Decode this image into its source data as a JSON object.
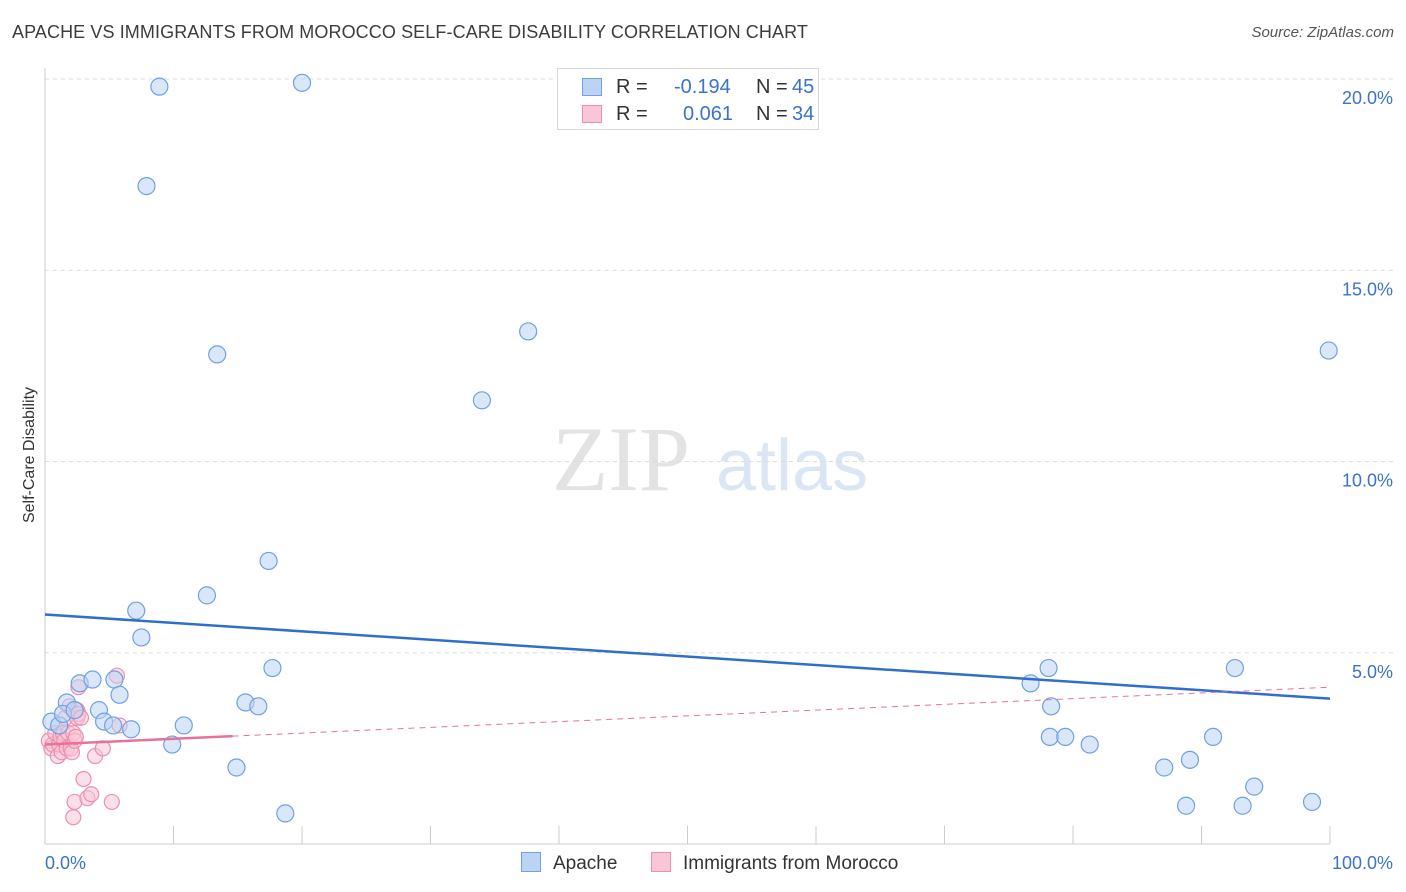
{
  "title": "APACHE VS IMMIGRANTS FROM MOROCCO SELF-CARE DISABILITY CORRELATION CHART",
  "source": "Source: ZipAtlas.com",
  "watermark": {
    "zip": "ZIP",
    "atlas": "atlas"
  },
  "legend": {
    "rows": [
      {
        "r_label": "R =",
        "r_value": "-0.194",
        "n_label": "N =",
        "n_value": "45"
      },
      {
        "r_label": "R =",
        "r_value": "0.061",
        "n_label": "N =",
        "n_value": "34"
      }
    ]
  },
  "chart_data": {
    "type": "scatter",
    "title": "APACHE VS IMMIGRANTS FROM MOROCCO SELF-CARE DISABILITY CORRELATION CHART",
    "xlabel": "",
    "ylabel": "Self-Care Disability",
    "xlim": [
      0,
      100
    ],
    "ylim": [
      0,
      20
    ],
    "x_tick_labels": [
      "0.0%",
      "100.0%"
    ],
    "y_ticks": [
      5,
      10,
      15,
      20
    ],
    "y_tick_labels": [
      "5.0%",
      "10.0%",
      "15.0%",
      "20.0%"
    ],
    "grid": "horizontal dashed",
    "legend_position": "bottom-center",
    "series": [
      {
        "name": "Apache",
        "color": "#6fa1e3",
        "fill": "#bcd4f3",
        "r": -0.194,
        "n": 45,
        "trend": {
          "x": [
            0,
            100
          ],
          "y": [
            6.0,
            3.8
          ]
        },
        "points": [
          [
            0.5,
            3.2
          ],
          [
            1.1,
            3.1
          ],
          [
            1.7,
            3.7
          ],
          [
            1.4,
            3.4
          ],
          [
            2.3,
            3.5
          ],
          [
            2.7,
            4.2
          ],
          [
            3.7,
            4.3
          ],
          [
            4.2,
            3.5
          ],
          [
            5.4,
            4.3
          ],
          [
            5.8,
            3.9
          ],
          [
            4.6,
            3.2
          ],
          [
            6.7,
            3.0
          ],
          [
            5.3,
            3.1
          ],
          [
            7.1,
            6.1
          ],
          [
            7.5,
            5.4
          ],
          [
            7.9,
            17.2
          ],
          [
            8.9,
            19.8
          ],
          [
            9.9,
            2.6
          ],
          [
            10.8,
            3.1
          ],
          [
            12.6,
            6.5
          ],
          [
            13.4,
            12.8
          ],
          [
            14.9,
            2.0
          ],
          [
            15.6,
            3.7
          ],
          [
            16.6,
            3.6
          ],
          [
            17.4,
            7.4
          ],
          [
            17.7,
            4.6
          ],
          [
            18.7,
            0.8
          ],
          [
            20.0,
            19.9
          ],
          [
            34.0,
            11.6
          ],
          [
            37.6,
            13.4
          ],
          [
            76.7,
            4.2
          ],
          [
            78.1,
            4.6
          ],
          [
            78.3,
            3.6
          ],
          [
            78.2,
            2.8
          ],
          [
            79.4,
            2.8
          ],
          [
            81.3,
            2.6
          ],
          [
            87.1,
            2.0
          ],
          [
            88.8,
            1.0
          ],
          [
            89.1,
            2.2
          ],
          [
            90.9,
            2.8
          ],
          [
            92.6,
            4.6
          ],
          [
            93.2,
            1.0
          ],
          [
            94.1,
            1.5
          ],
          [
            98.6,
            1.1
          ],
          [
            99.9,
            12.9
          ]
        ]
      },
      {
        "name": "Immigrants from Morocco",
        "color": "#ee8eb0",
        "fill": "#f8c6d6",
        "r": 0.061,
        "n": 34,
        "trend": {
          "x": [
            0,
            100
          ],
          "y": [
            2.6,
            4.1
          ]
        },
        "trend_solid_to_x": 14.6,
        "points": [
          [
            0.3,
            2.7
          ],
          [
            0.5,
            2.5
          ],
          [
            0.6,
            2.6
          ],
          [
            0.8,
            2.9
          ],
          [
            1.0,
            2.3
          ],
          [
            1.1,
            2.6
          ],
          [
            1.2,
            2.8
          ],
          [
            1.3,
            2.4
          ],
          [
            1.4,
            2.9
          ],
          [
            1.5,
            2.7
          ],
          [
            1.6,
            3.3
          ],
          [
            1.7,
            2.5
          ],
          [
            1.8,
            2.9
          ],
          [
            1.9,
            3.6
          ],
          [
            2.0,
            2.5
          ],
          [
            2.1,
            2.4
          ],
          [
            2.2,
            2.9
          ],
          [
            2.3,
            2.7
          ],
          [
            2.4,
            2.8
          ],
          [
            2.5,
            3.3
          ],
          [
            2.2,
            0.7
          ],
          [
            2.3,
            1.1
          ],
          [
            2.5,
            3.5
          ],
          [
            2.6,
            3.4
          ],
          [
            2.6,
            4.1
          ],
          [
            2.8,
            3.3
          ],
          [
            3.0,
            1.7
          ],
          [
            3.3,
            1.2
          ],
          [
            3.6,
            1.3
          ],
          [
            3.9,
            2.3
          ],
          [
            4.5,
            2.5
          ],
          [
            5.2,
            1.1
          ],
          [
            5.6,
            4.4
          ],
          [
            5.8,
            3.1
          ]
        ]
      }
    ]
  }
}
